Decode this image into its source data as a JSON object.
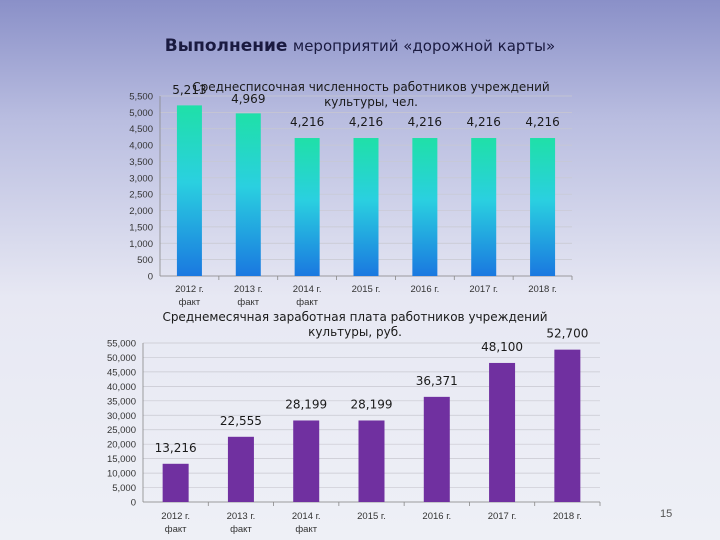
{
  "slide": {
    "title_bold": "Выполнение",
    "title_rest": "мероприятий «дорожной карты»",
    "page_number": "15"
  },
  "chart_data": [
    {
      "type": "bar",
      "title": [
        "Среднесписочная численность работников учреждений",
        "культуры, чел."
      ],
      "categories": [
        [
          "2012 г.",
          "факт"
        ],
        [
          "2013 г.",
          "факт"
        ],
        [
          "2014 г.",
          "факт"
        ],
        [
          "2015 г."
        ],
        [
          "2016 г."
        ],
        [
          "2017 г."
        ],
        [
          "2018 г."
        ]
      ],
      "values": [
        5213,
        4969,
        4216,
        4216,
        4216,
        4216,
        4216
      ],
      "value_labels": [
        "5,213",
        "4,969",
        "4,216",
        "4,216",
        "4,216",
        "4,216",
        "4,216"
      ],
      "ylim": [
        0,
        5500
      ],
      "yticks": [
        0,
        500,
        1000,
        1500,
        2000,
        2500,
        3000,
        3500,
        4000,
        4500,
        5000,
        5500
      ],
      "ytick_labels": [
        "0",
        "500",
        "1,000",
        "1,500",
        "2,000",
        "2,500",
        "3,000",
        "3,500",
        "4,000",
        "4,500",
        "5,000",
        "5,500"
      ],
      "bar_color_top": "#1fe0a8",
      "bar_color_mid": "#2ad0e0",
      "bar_color_bottom": "#1a78e0"
    },
    {
      "type": "bar",
      "title": [
        "Среднемесячная заработная плата работников учреждений",
        "культуры, руб."
      ],
      "categories": [
        [
          "2012 г.",
          "факт"
        ],
        [
          "2013 г.",
          "факт"
        ],
        [
          "2014 г.",
          "факт"
        ],
        [
          "2015 г."
        ],
        [
          "2016 г."
        ],
        [
          "2017 г."
        ],
        [
          "2018 г."
        ]
      ],
      "values": [
        13216,
        22555,
        28199,
        28199,
        36371,
        48100,
        52700
      ],
      "value_labels": [
        "13,216",
        "22,555",
        "28,199",
        "28,199",
        "36,371",
        "48,100",
        "52,700"
      ],
      "ylim": [
        0,
        55000
      ],
      "yticks": [
        0,
        5000,
        10000,
        15000,
        20000,
        25000,
        30000,
        35000,
        40000,
        45000,
        50000,
        55000
      ],
      "ytick_labels": [
        "0",
        "5,000",
        "10,000",
        "15,000",
        "20,000",
        "25,000",
        "30,000",
        "35,000",
        "40,000",
        "45,000",
        "50,000",
        "55,000"
      ],
      "bar_color": "#7030a0"
    }
  ]
}
